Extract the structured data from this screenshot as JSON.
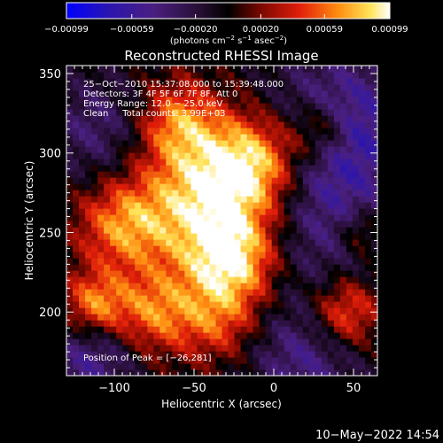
{
  "chart_data": {
    "type": "heatmap",
    "title": "Reconstructed RHESSI Image",
    "xlabel": "Heliocentric X (arcsec)",
    "ylabel": "Heliocentric Y (arcsec)",
    "xlim": [
      -130,
      65
    ],
    "ylim": [
      160,
      355
    ],
    "x_ticks": [
      -100,
      -50,
      0,
      50
    ],
    "x_tick_labels": [
      "−100",
      "−50",
      "0",
      "50"
    ],
    "y_ticks": [
      200,
      250,
      300,
      350
    ],
    "y_tick_labels": [
      "200",
      "250",
      "300",
      "350"
    ],
    "colorbar": {
      "range": [
        -0.00099,
        0.00099
      ],
      "ticks": [
        -0.00099,
        -0.00059,
        -0.0002,
        0.0002,
        0.00059,
        0.00099
      ],
      "tick_labels": [
        "−0.00099",
        "−0.00059",
        "−0.00020",
        "0.00020",
        "0.00059",
        "0.00099"
      ],
      "unit": {
        "prefix": "(photons cm",
        "sup1": "−2",
        "mid1": " s",
        "sup2": "−1",
        "mid2": " asec",
        "sup3": "−2",
        "suffix": ")"
      },
      "colormap": [
        "#0000ff",
        "#3b1a8f",
        "#55206b",
        "#000000",
        "#8c0a00",
        "#e0200a",
        "#ff8a0c",
        "#ffe040",
        "#ffffff"
      ]
    },
    "annotations": [
      "25−Oct−2010 15:37:08.000 to 15:39:48.000",
      "Detectors: 3F 4F 5F 6F 7F 8F, Att 0",
      "Energy Range: 12.0 − 25.0 keV",
      "Clean     Total counts: 3.99E+03"
    ],
    "peak_label": "Position of Peak = [−26,281]",
    "peak": [
      -26,
      281
    ],
    "grid": false
  },
  "footer": {
    "timestamp": "10−May−2022 14:54"
  }
}
